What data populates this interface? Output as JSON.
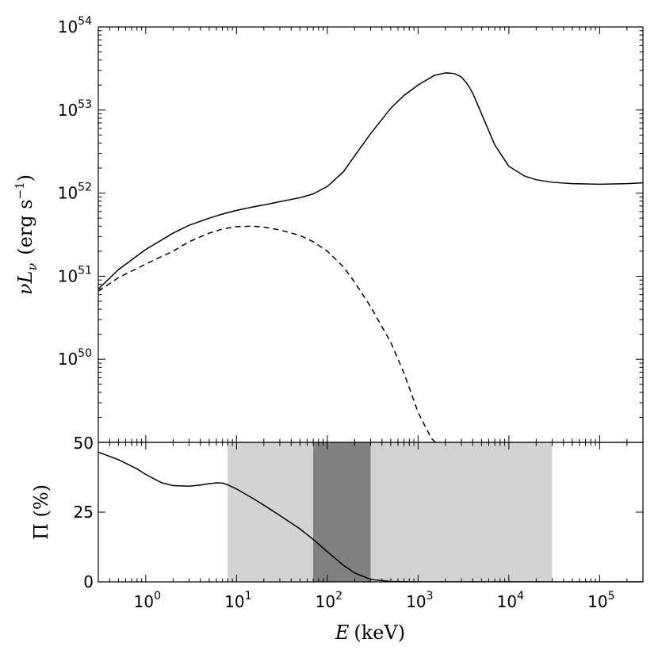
{
  "chart_data": [
    {
      "type": "line",
      "xscale": "log",
      "yscale": "log",
      "xlim": [
        0.3,
        300000
      ],
      "ylim": [
        1e+49,
        1e+54
      ],
      "x_tick_labels": [
        {
          "base": "10",
          "exp": "0",
          "value": 1
        },
        {
          "base": "10",
          "exp": "1",
          "value": 10
        },
        {
          "base": "10",
          "exp": "2",
          "value": 100
        },
        {
          "base": "10",
          "exp": "3",
          "value": 1000
        },
        {
          "base": "10",
          "exp": "4",
          "value": 10000
        },
        {
          "base": "10",
          "exp": "5",
          "value": 100000
        }
      ],
      "y_tick_labels": [
        {
          "base": "10",
          "exp": "50",
          "value": 1e+50
        },
        {
          "base": "10",
          "exp": "51",
          "value": 1e+51
        },
        {
          "base": "10",
          "exp": "52",
          "value": 1e+52
        },
        {
          "base": "10",
          "exp": "53",
          "value": 1e+53
        },
        {
          "base": "10",
          "exp": "54",
          "value": 1e+54
        }
      ],
      "y_bottom_label": "50",
      "ylabel": {
        "main": "νL",
        "sub": "ν",
        "units": "(erg s",
        "units_sup": "−1",
        "units_close": ")"
      },
      "grid": false,
      "series": [
        {
          "style": "solid",
          "color": "#000000",
          "x": [
            0.3,
            0.5,
            1,
            2,
            3,
            5,
            7,
            10,
            15,
            20,
            30,
            50,
            70,
            100,
            150,
            200,
            300,
            500,
            700,
            1000,
            1500,
            2000,
            2500,
            3000,
            3500,
            4000,
            5000,
            7000,
            10000,
            15000,
            20000,
            30000,
            50000,
            100000,
            200000,
            300000
          ],
          "y": [
            7e+50,
            1.2e+51,
            2.1e+51,
            3.3e+51,
            4.1e+51,
            5e+51,
            5.6e+51,
            6.2e+51,
            6.8e+51,
            7.2e+51,
            7.9e+51,
            8.8e+51,
            9.8e+51,
            1.2e+52,
            1.8e+52,
            2.8e+52,
            5.2e+52,
            1.05e+53,
            1.5e+53,
            2e+53,
            2.6e+53,
            2.8e+53,
            2.75e+53,
            2.5e+53,
            2.05e+53,
            1.6e+53,
            9e+52,
            3.8e+52,
            2.1e+52,
            1.6e+52,
            1.45e+52,
            1.35e+52,
            1.3e+52,
            1.28e+52,
            1.3e+52,
            1.33e+52
          ]
        },
        {
          "style": "dashed",
          "color": "#000000",
          "x": [
            0.3,
            0.5,
            1,
            2,
            3,
            5,
            7,
            10,
            15,
            20,
            30,
            50,
            70,
            100,
            150,
            200,
            300,
            500,
            700,
            1000,
            1200,
            1400,
            1550
          ],
          "y": [
            6.6e+50,
            9.6e+50,
            1.4e+51,
            2e+51,
            2.6e+51,
            3.3e+51,
            3.7e+51,
            3.95e+51,
            4e+51,
            3.9e+51,
            3.6e+51,
            3.1e+51,
            2.6e+51,
            2e+51,
            1.3e+51,
            8.5e+50,
            4.3e+50,
            1.6e+50,
            6.8e+49,
            2.3e+49,
            1.55e+49,
            1.12e+49,
            1e+49
          ]
        }
      ]
    },
    {
      "type": "line",
      "xscale": "log",
      "yscale": "linear",
      "xlim": [
        0.3,
        300000
      ],
      "ylim": [
        0,
        50
      ],
      "y_ticks": [
        0,
        25
      ],
      "ylabel": "Π (%)",
      "xlabel": {
        "var": "E",
        "units": "(keV)"
      },
      "grid": false,
      "bands": [
        {
          "x0": 8,
          "x1": 30000,
          "color": "#d3d3d3"
        },
        {
          "x0": 70,
          "x1": 300,
          "color": "#808080"
        }
      ],
      "series": [
        {
          "style": "solid",
          "color": "#000000",
          "x": [
            0.3,
            0.5,
            0.8,
            1,
            1.5,
            2,
            3,
            4,
            5,
            6,
            7,
            8,
            10,
            15,
            20,
            30,
            50,
            70,
            100,
            150,
            200,
            300,
            500,
            1000,
            3000,
            300000
          ],
          "y": [
            46.5,
            43.8,
            40.5,
            38.5,
            35.5,
            34.5,
            34.3,
            34.7,
            35.2,
            35.5,
            35.4,
            34.8,
            33.3,
            30,
            27.5,
            23.8,
            19,
            15.2,
            10.8,
            6,
            3.2,
            0.9,
            0.15,
            0,
            0,
            0
          ]
        }
      ]
    }
  ]
}
